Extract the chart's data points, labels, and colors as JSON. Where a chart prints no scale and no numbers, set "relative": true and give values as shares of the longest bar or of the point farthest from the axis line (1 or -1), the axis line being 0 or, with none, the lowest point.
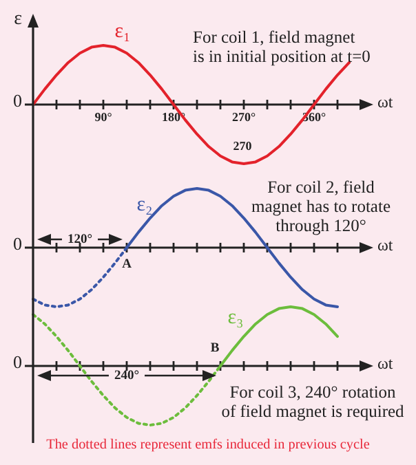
{
  "chart_data": [
    {
      "type": "line",
      "ylabel": "ε",
      "xlabel": "ωt",
      "relative": true,
      "xlim": [
        0,
        420
      ],
      "xticks": [
        {
          "value": 30,
          "label": null
        },
        {
          "value": 60,
          "label": null
        },
        {
          "value": 90,
          "label": "90°"
        },
        {
          "value": 120,
          "label": null
        },
        {
          "value": 150,
          "label": null
        },
        {
          "value": 180,
          "label": "180°"
        },
        {
          "value": 210,
          "label": null
        },
        {
          "value": 240,
          "label": null
        },
        {
          "value": 270,
          "label": "270°"
        },
        {
          "value": 300,
          "label": null
        },
        {
          "value": 330,
          "label": null
        },
        {
          "value": 360,
          "label": "360°"
        },
        {
          "value": 390,
          "label": null
        }
      ],
      "series": [
        {
          "name": "ε₁",
          "color": "#e3222b",
          "x": [
            0,
            15,
            30,
            45,
            60,
            75,
            90,
            105,
            120,
            135,
            150,
            165,
            180,
            195,
            210,
            225,
            240,
            255,
            270,
            285,
            300,
            315,
            330,
            345,
            360,
            375,
            390,
            405
          ],
          "values": [
            0,
            0.26,
            0.5,
            0.71,
            0.87,
            0.97,
            1,
            0.97,
            0.87,
            0.71,
            0.5,
            0.26,
            0,
            -0.26,
            -0.5,
            -0.71,
            -0.87,
            -0.97,
            -1,
            -0.97,
            -0.87,
            -0.71,
            -0.5,
            -0.26,
            0,
            0.26,
            0.5,
            0.71
          ]
        }
      ],
      "annotations": [
        "0",
        "For coil 1, field magnet\nis in initial position at t=0",
        "270"
      ],
      "marker": "none"
    },
    {
      "type": "line",
      "xlabel": "ωt",
      "relative": true,
      "categories": [
        null,
        null,
        null,
        null,
        null,
        null,
        null,
        null,
        null,
        null,
        null,
        null,
        null,
        null,
        null,
        null,
        null,
        null,
        null,
        null,
        null,
        null,
        null,
        null,
        null,
        null,
        null
      ],
      "series": [
        {
          "name": "ε₂",
          "color": "#3a57a8",
          "values": [
            null,
            null,
            null,
            null,
            null,
            null,
            null,
            null,
            0,
            0.26,
            0.5,
            0.71,
            0.87,
            0.97,
            1,
            0.97,
            0.87,
            0.71,
            0.5,
            0.26,
            0,
            -0.26,
            -0.5,
            -0.71,
            -0.87,
            -0.97,
            -1
          ]
        },
        {
          "color": "#3a57a8",
          "line_style": "dotted",
          "values": [
            -0.87,
            -0.97,
            -1,
            -0.97,
            -0.87,
            -0.71,
            -0.5,
            -0.26,
            0,
            null,
            null,
            null,
            null,
            null,
            null,
            null,
            null,
            null,
            null,
            null,
            null,
            null,
            null,
            null,
            null,
            null,
            null
          ]
        }
      ],
      "annotations": [
        "0",
        "For coil 2, field\nmagnet has to rotate\nthrough 120°",
        "120°",
        "A"
      ],
      "marker": "none"
    },
    {
      "type": "line",
      "xlabel": "ωt",
      "relative": true,
      "categories": [
        null,
        null,
        null,
        null,
        null,
        null,
        null,
        null,
        null,
        null,
        null,
        null,
        null,
        null,
        null,
        null,
        null,
        null,
        null,
        null,
        null,
        null,
        null,
        null,
        null,
        null,
        null
      ],
      "series": [
        {
          "name": "ε₃",
          "color": "#6cbd3c",
          "values": [
            null,
            null,
            null,
            null,
            null,
            null,
            null,
            null,
            null,
            null,
            null,
            null,
            null,
            null,
            null,
            null,
            0,
            0.26,
            0.5,
            0.71,
            0.87,
            0.97,
            1,
            0.97,
            0.87,
            0.71,
            0.5
          ]
        },
        {
          "color": "#6cbd3c",
          "line_style": "dotted",
          "values": [
            0.87,
            0.71,
            0.5,
            0.26,
            0,
            -0.26,
            -0.5,
            -0.71,
            -0.87,
            -0.97,
            -1,
            -0.97,
            -0.87,
            -0.71,
            -0.5,
            -0.26,
            0,
            null,
            null,
            null,
            null,
            null,
            null,
            null,
            null,
            null,
            null
          ]
        }
      ],
      "annotations": [
        "0",
        "B",
        "240°",
        "For coil 3, 240° rotation\nof field magnet is required",
        "The dotted lines represent emfs induced in previous cycle"
      ],
      "marker": "none"
    }
  ]
}
